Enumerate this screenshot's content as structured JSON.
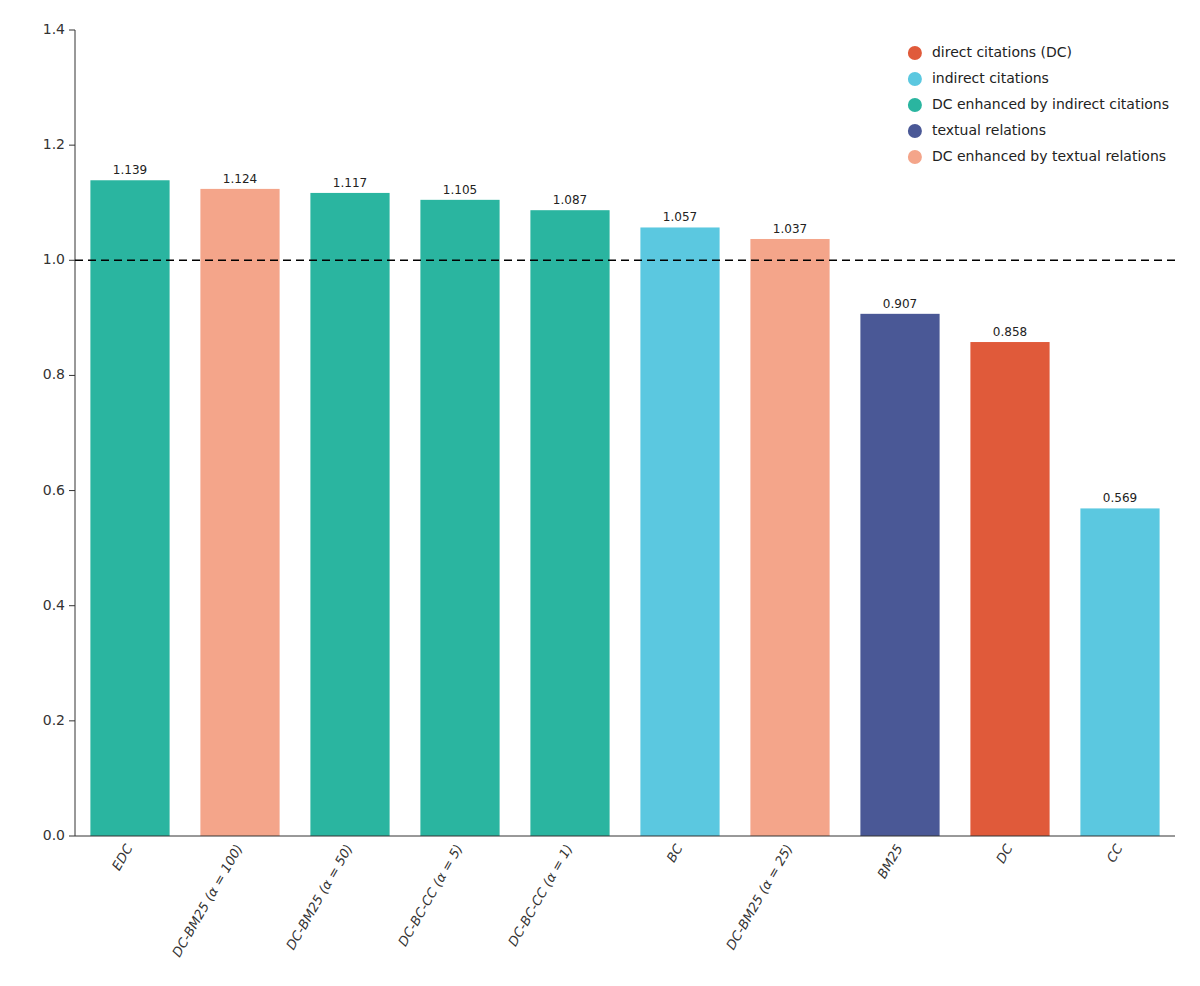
{
  "chart_data": {
    "type": "bar",
    "categories": [
      "EDC",
      "DC-BM25 (α = 100)",
      "DC-BM25 (α = 50)",
      "DC-BC-CC (α = 5)",
      "DC-BC-CC (α = 1)",
      "BC",
      "DC-BM25 (α = 25)",
      "BM25",
      "DC",
      "CC"
    ],
    "values": [
      1.139,
      1.124,
      1.117,
      1.105,
      1.087,
      1.057,
      1.037,
      0.907,
      0.858,
      0.569
    ],
    "colors": [
      "#2ab5a0",
      "#f4a58a",
      "#2ab5a0",
      "#2ab5a0",
      "#2ab5a0",
      "#5bc8e0",
      "#f4a58a",
      "#4a5896",
      "#e05a3a",
      "#5bc8e0"
    ],
    "data_labels": true,
    "hline": {
      "value": 1.0,
      "line_style": "dashed"
    },
    "ylim": [
      0.0,
      1.4
    ],
    "yticks": [
      {
        "value": 0.0,
        "label": "0.0"
      },
      0.2,
      0.4,
      0.6,
      0.8,
      {
        "value": 1.0,
        "label": "1.0"
      },
      1.2,
      1.4
    ],
    "grid": false,
    "legend": "upper right",
    "legend_items": [
      {
        "name": "direct citations (DC)",
        "color": "#e05a3a"
      },
      {
        "name": "indirect citations",
        "color": "#5bc8e0"
      },
      {
        "name": "DC enhanced by indirect citations",
        "color": "#2ab5a0"
      },
      {
        "name": "textual relations",
        "color": "#4a5896"
      },
      {
        "name": "DC enhanced by textual relations",
        "color": "#f4a58a"
      }
    ]
  }
}
